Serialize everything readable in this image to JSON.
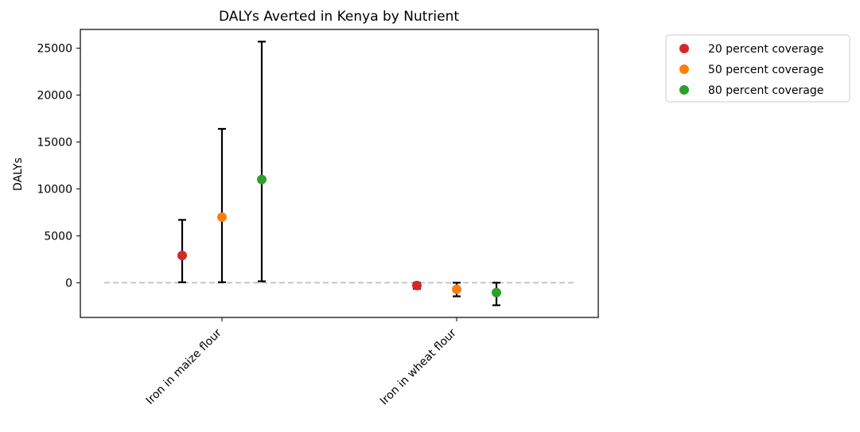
{
  "chart_data": {
    "type": "scatter",
    "title": "DALYs Averted in Kenya by Nutrient",
    "xlabel": "",
    "ylabel": "DALYs",
    "categories": [
      "Iron in maize flour",
      "Iron in wheat flour"
    ],
    "ylim": [
      -3700,
      27000
    ],
    "yticks": [
      0,
      5000,
      10000,
      15000,
      20000,
      25000
    ],
    "grid": false,
    "legend_position": "outside-top-right",
    "zero_line": {
      "value": 0,
      "style": "dashed",
      "color": "#bfbfbf"
    },
    "series": [
      {
        "name": "20 percent coverage",
        "color": "#d62728",
        "points": [
          {
            "category": "Iron in maize flour",
            "value": 2900,
            "lower": 50,
            "upper": 6700
          },
          {
            "category": "Iron in wheat flour",
            "value": -300,
            "lower": -650,
            "upper": 0
          }
        ]
      },
      {
        "name": "50 percent coverage",
        "color": "#ff7f0e",
        "points": [
          {
            "category": "Iron in maize flour",
            "value": 7000,
            "lower": 50,
            "upper": 16400
          },
          {
            "category": "Iron in wheat flour",
            "value": -700,
            "lower": -1450,
            "upper": 0
          }
        ]
      },
      {
        "name": "80 percent coverage",
        "color": "#2ca02c",
        "points": [
          {
            "category": "Iron in maize flour",
            "value": 11000,
            "lower": 150,
            "upper": 25700
          },
          {
            "category": "Iron in wheat flour",
            "value": -1050,
            "lower": -2400,
            "upper": 0
          }
        ]
      }
    ]
  }
}
